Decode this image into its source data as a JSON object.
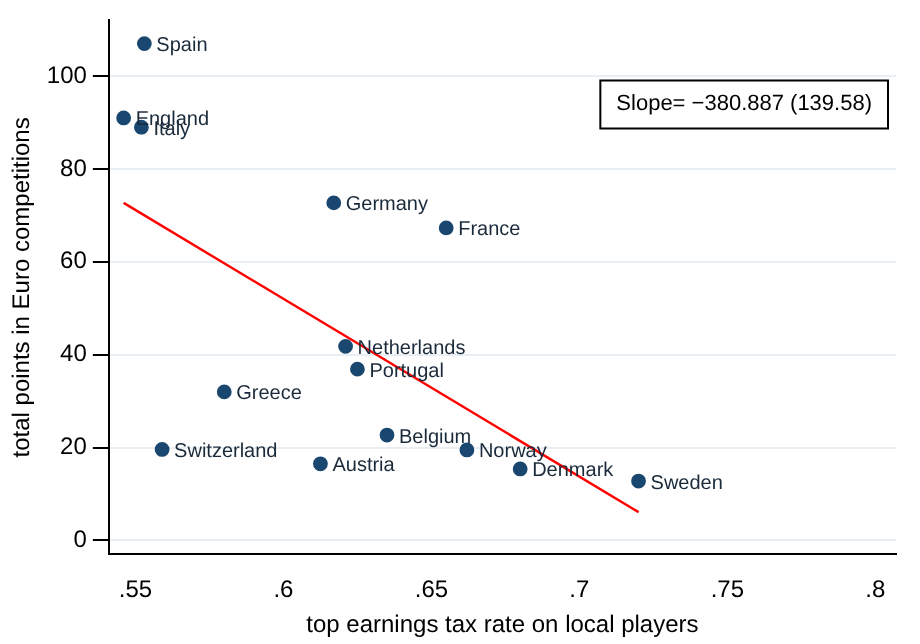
{
  "chart_data": {
    "type": "scatter",
    "xlabel": "top earnings tax rate on local players",
    "ylabel": "total points in Euro competitions",
    "xlim": [
      0.541,
      0.807
    ],
    "xticks": [
      {
        "value": 0.55,
        "label": ".55"
      },
      {
        "value": 0.6,
        "label": ".6"
      },
      {
        "value": 0.65,
        "label": ".65"
      },
      {
        "value": 0.7,
        "label": ".7"
      },
      {
        "value": 0.75,
        "label": ".75"
      },
      {
        "value": 0.8,
        "label": ".8"
      }
    ],
    "ylim": [
      -3,
      112
    ],
    "yticks": [
      0,
      20,
      40,
      60,
      80,
      100
    ],
    "grid": "y",
    "legend": false,
    "series": [
      {
        "marker": "circle",
        "color": "#1a476f",
        "x": [
          0.553,
          0.546,
          0.552,
          0.617,
          0.655,
          0.621,
          0.625,
          0.58,
          0.559,
          0.6125,
          0.635,
          0.662,
          0.68,
          0.72
        ],
        "values": [
          107,
          91,
          89,
          72.7,
          67.3,
          41.8,
          36.9,
          32,
          19.6,
          16.5,
          22.7,
          19.5,
          15.4,
          12.8
        ]
      },
      {
        "type": "line",
        "color": "#ff0000",
        "x": [
          0.546,
          0.72
        ],
        "values": [
          72.7,
          6.1
        ]
      }
    ],
    "annotations": [
      {
        "text": "Spain",
        "x": 0.553,
        "y": 107
      },
      {
        "text": "England",
        "x": 0.546,
        "y": 91
      },
      {
        "text": "Italy",
        "x": 0.552,
        "y": 89
      },
      {
        "text": "Germany",
        "x": 0.617,
        "y": 72.7
      },
      {
        "text": "France",
        "x": 0.655,
        "y": 67.3
      },
      {
        "text": "Netherlands",
        "x": 0.621,
        "y": 41.8
      },
      {
        "text": "Portugal",
        "x": 0.625,
        "y": 36.9
      },
      {
        "text": "Greece",
        "x": 0.58,
        "y": 32
      },
      {
        "text": "Switzerland",
        "x": 0.559,
        "y": 19.6
      },
      {
        "text": "Austria",
        "x": 0.6125,
        "y": 16.5
      },
      {
        "text": "Belgium",
        "x": 0.635,
        "y": 22.7
      },
      {
        "text": "Norway",
        "x": 0.662,
        "y": 19.5
      },
      {
        "text": "Denmark",
        "x": 0.68,
        "y": 15.4
      },
      {
        "text": "Sweden",
        "x": 0.72,
        "y": 12.8
      },
      "Slope= −380.887 (139.58)"
    ]
  }
}
